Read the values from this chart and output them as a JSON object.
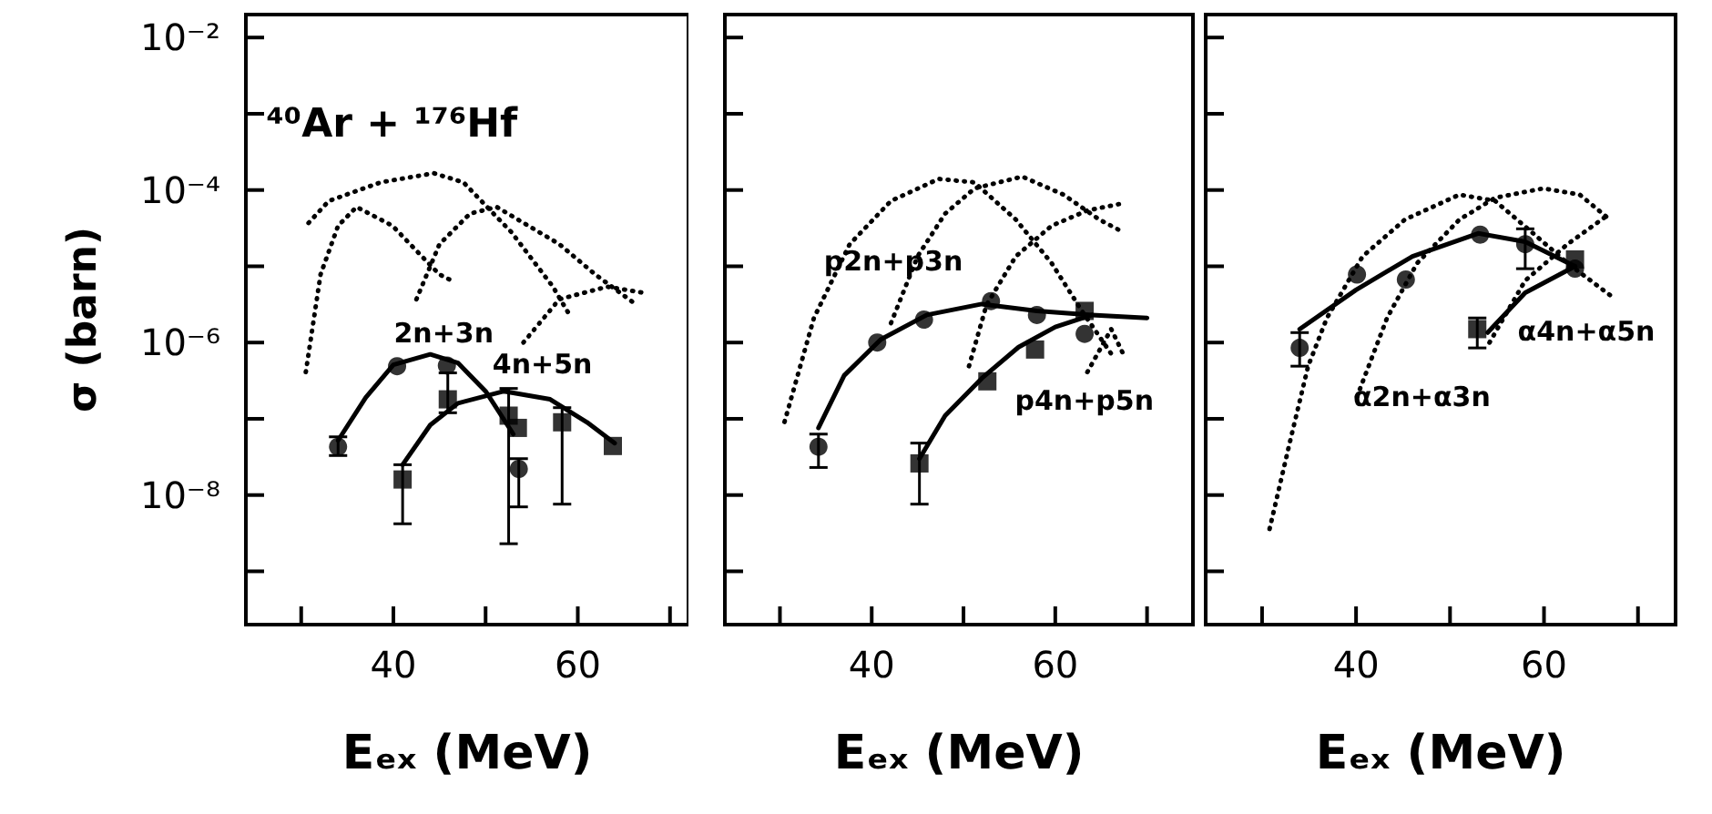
{
  "chart_data": [
    {
      "type": "scatter",
      "xlabel": "Eₑₓ (MeV)",
      "ylabel": "σ (barn)",
      "log": "y",
      "xlim": [
        24,
        72
      ],
      "ylim": [
        2e-10,
        0.02
      ],
      "xticks": [
        {
          "value": 30,
          "label": null
        },
        {
          "value": 40,
          "label": "40"
        },
        {
          "value": 50,
          "label": null
        },
        {
          "value": 60,
          "label": "60"
        },
        {
          "value": 70,
          "label": null
        }
      ],
      "yticks": [
        {
          "value": 1e-09,
          "label": null
        },
        {
          "value": 1e-08,
          "label": "10⁻⁸"
        },
        {
          "value": 1e-07,
          "label": null
        },
        {
          "value": 1e-06,
          "label": "10⁻⁶"
        },
        {
          "value": 1e-05,
          "label": null
        },
        {
          "value": 0.0001,
          "label": "10⁻⁴"
        },
        {
          "value": 0.001,
          "label": null
        },
        {
          "value": 0.01,
          "label": "10⁻²"
        }
      ],
      "annotations": [
        "⁴⁰Ar + ¹⁷⁶Hf",
        "2n+3n",
        "4n+5n"
      ],
      "series": [
        {
          "marker": "circle",
          "color": "#000000",
          "x": [
            34.0,
            40.4,
            45.8,
            53.6
          ],
          "values": [
            4.3e-08,
            4.9e-07,
            5e-07,
            2.2e-08
          ],
          "errors": [
            [
              3.3e-08,
              5.8e-08
            ],
            null,
            null,
            [
              7e-09,
              3e-08
            ]
          ]
        },
        {
          "marker": "square",
          "color": "#000000",
          "x": [
            41.0,
            45.9,
            52.5,
            53.5,
            58.3,
            63.8
          ],
          "values": [
            1.6e-08,
            1.8e-07,
            1.1e-07,
            7.6e-08,
            9e-08,
            4.4e-08
          ],
          "errors": [
            [
              4.2e-09,
              2.5e-08
            ],
            [
              1.2e-07,
              4e-07
            ],
            [
              2.3e-09,
              2.5e-07
            ],
            null,
            [
              7.6e-09,
              1.4e-07
            ],
            null
          ]
        },
        {
          "type": "line",
          "marker": "none",
          "line_style": "solid",
          "color": "#000000",
          "x": [
            34,
            37,
            40,
            44,
            47,
            50,
            53
          ],
          "values": [
            5.2e-08,
            1.9e-07,
            5.1e-07,
            7e-07,
            5.4e-07,
            2.3e-07,
            6.3e-08
          ]
        },
        {
          "type": "line",
          "marker": "none",
          "line_style": "solid",
          "color": "#000000",
          "x": [
            41,
            44,
            47,
            52,
            57,
            61,
            64
          ],
          "values": [
            2.5e-08,
            8.3e-08,
            1.6e-07,
            2.3e-07,
            1.8e-07,
            9e-08,
            4.8e-08
          ]
        },
        {
          "type": "line",
          "marker": "none",
          "line_style": "dotted",
          "color": "#000000",
          "x": [
            30.5,
            32.1,
            34.0,
            36.0,
            39.9,
            42.5,
            45.0,
            46.3
          ],
          "values": [
            4.1e-07,
            7.8e-06,
            3.4e-05,
            6e-05,
            3.4e-05,
            1.6e-05,
            7.8e-06,
            6.5e-06
          ]
        },
        {
          "type": "line",
          "marker": "none",
          "line_style": "dotted",
          "color": "#000000",
          "x": [
            30.8,
            33.0,
            38.6,
            44.4,
            47.6,
            52.8,
            57.3,
            59.3
          ],
          "values": [
            3.7e-05,
            7.2e-05,
            0.000126,
            0.000166,
            0.000126,
            2.8e-05,
            5.4e-06,
            2.1e-06
          ]
        },
        {
          "type": "line",
          "marker": "none",
          "line_style": "dotted",
          "color": "#000000",
          "x": [
            42.5,
            45.0,
            48.3,
            51.2,
            58.0,
            61.9,
            66.4
          ],
          "values": [
            3.7e-06,
            1.95e-05,
            4.9e-05,
            6e-05,
            1.95e-05,
            7.8e-06,
            3.1e-06
          ]
        },
        {
          "type": "line",
          "marker": "none",
          "line_style": "dotted",
          "color": "#000000",
          "x": [
            54.1,
            58.0,
            63.2,
            67.1
          ],
          "values": [
            1e-06,
            3.7e-06,
            5.4e-06,
            4.5e-06
          ]
        }
      ]
    },
    {
      "type": "scatter",
      "xlabel": "Eₑₓ (MeV)",
      "log": "y",
      "xlim": [
        24,
        75
      ],
      "ylim": [
        2e-10,
        0.02
      ],
      "tick_labels": "x",
      "xticks": [
        {
          "value": 30,
          "label": null
        },
        {
          "value": 40,
          "label": "40"
        },
        {
          "value": 50,
          "label": null
        },
        {
          "value": 60,
          "label": "60"
        },
        {
          "value": 70,
          "label": null
        }
      ],
      "yticks": [
        {
          "value": 1e-09,
          "label": null
        },
        {
          "value": 1e-08,
          "label": null
        },
        {
          "value": 1e-07,
          "label": null
        },
        {
          "value": 1e-06,
          "label": null
        },
        {
          "value": 1e-05,
          "label": null
        },
        {
          "value": 0.0001,
          "label": null
        },
        {
          "value": 0.001,
          "label": null
        },
        {
          "value": 0.01,
          "label": null
        }
      ],
      "annotations": [
        "p2n+p3n",
        "p4n+p5n"
      ],
      "series": [
        {
          "marker": "circle",
          "color": "#000000",
          "x": [
            34.2,
            40.6,
            45.7,
            53.0,
            58.0,
            63.2
          ],
          "values": [
            4.3e-08,
            1e-06,
            2e-06,
            3.5e-06,
            2.3e-06,
            1.3e-06
          ],
          "errors": [
            [
              2.3e-08,
              6.3e-08
            ],
            null,
            null,
            null,
            null,
            null
          ]
        },
        {
          "marker": "square",
          "color": "#000000",
          "x": [
            45.2,
            52.6,
            57.8,
            63.2
          ],
          "values": [
            2.6e-08,
            3.1e-07,
            8.1e-07,
            2.6e-06
          ],
          "errors": [
            [
              7.6e-09,
              4.8e-08
            ],
            null,
            null,
            null
          ]
        },
        {
          "type": "line",
          "marker": "none",
          "line_style": "solid",
          "color": "#000000",
          "x": [
            34.2,
            37,
            41,
            46,
            52,
            58,
            64,
            70
          ],
          "values": [
            7.6e-08,
            3.7e-07,
            1.1e-06,
            2.3e-06,
            3.2e-06,
            2.6e-06,
            2.3e-06,
            2.1e-06
          ]
        },
        {
          "type": "line",
          "marker": "none",
          "line_style": "solid",
          "color": "#000000",
          "x": [
            45.2,
            48,
            52,
            56,
            60,
            64
          ],
          "values": [
            3e-08,
            1.1e-07,
            3.4e-07,
            8.7e-07,
            1.6e-06,
            2.3e-06
          ]
        },
        {
          "type": "line",
          "marker": "none",
          "line_style": "dotted",
          "color": "#000000",
          "x": [
            30.5,
            33.7,
            37.6,
            42.1,
            47.3,
            51.2,
            55.7,
            59.6,
            62.9,
            66.1
          ],
          "values": [
            9.1e-08,
            2.1e-06,
            1.95e-05,
            7.2e-05,
            0.00014,
            0.000126,
            4.1e-05,
            1.1e-05,
            2.6e-06,
            7.1e-07
          ]
        },
        {
          "type": "line",
          "marker": "none",
          "line_style": "dotted",
          "color": "#000000",
          "x": [
            42.1,
            45.0,
            48.0,
            51.2,
            56.4,
            60.9,
            64.8,
            67.4
          ],
          "values": [
            1.8e-06,
            1.35e-05,
            4.9e-05,
            0.000105,
            0.00015,
            8.7e-05,
            4.1e-05,
            2.8e-05
          ]
        },
        {
          "type": "line",
          "marker": "none",
          "line_style": "dotted",
          "color": "#000000",
          "x": [
            50.6,
            52.5,
            55.7,
            59.6,
            63.5,
            67.1
          ],
          "values": [
            4.9e-07,
            3.1e-06,
            1.35e-05,
            3.4e-05,
            5.4e-05,
            6.6e-05
          ]
        },
        {
          "type": "line",
          "marker": "none",
          "line_style": "dotted",
          "color": "#000000",
          "x": [
            63.5,
            66.1,
            67.4
          ],
          "values": [
            4.1e-07,
            1.5e-06,
            7.1e-07
          ]
        }
      ]
    },
    {
      "type": "scatter",
      "xlabel": "Eₑₓ (MeV)",
      "log": "y",
      "xlim": [
        24,
        74
      ],
      "ylim": [
        2e-10,
        0.02
      ],
      "tick_labels": "x",
      "xticks": [
        {
          "value": 30,
          "label": null
        },
        {
          "value": 40,
          "label": "40"
        },
        {
          "value": 50,
          "label": null
        },
        {
          "value": 60,
          "label": "60"
        },
        {
          "value": 70,
          "label": null
        }
      ],
      "yticks": [
        {
          "value": 1e-09,
          "label": null
        },
        {
          "value": 1e-08,
          "label": null
        },
        {
          "value": 1e-07,
          "label": null
        },
        {
          "value": 1e-06,
          "label": null
        },
        {
          "value": 1e-05,
          "label": null
        },
        {
          "value": 0.0001,
          "label": null
        },
        {
          "value": 0.001,
          "label": null
        },
        {
          "value": 0.01,
          "label": null
        }
      ],
      "annotations": [
        "α2n+α3n",
        "α4n+α5n"
      ],
      "series": [
        {
          "marker": "circle",
          "color": "#000000",
          "x": [
            34.0,
            40.1,
            45.3,
            53.2,
            58.0,
            63.3
          ],
          "values": [
            8.5e-07,
            7.8e-06,
            6.7e-06,
            2.6e-05,
            1.95e-05,
            9.3e-06
          ],
          "errors": [
            [
              4.9e-07,
              1.35e-06
            ],
            null,
            null,
            null,
            [
              9.3e-06,
              3.1e-05
            ],
            null
          ]
        },
        {
          "marker": "square",
          "color": "#000000",
          "x": [
            52.9,
            63.3
          ],
          "values": [
            1.5e-06,
            1.23e-05
          ],
          "errors": [
            [
              8.5e-07,
              2.1e-06
            ],
            null
          ]
        },
        {
          "type": "line",
          "marker": "none",
          "line_style": "solid",
          "color": "#000000",
          "x": [
            34,
            40,
            46,
            53,
            58,
            63.3
          ],
          "values": [
            1.5e-06,
            4.9e-06,
            1.35e-05,
            2.7e-05,
            2.1e-05,
            1e-05
          ]
        },
        {
          "type": "line",
          "marker": "none",
          "line_style": "solid",
          "color": "#000000",
          "x": [
            54,
            58,
            63.3
          ],
          "values": [
            1.35e-06,
            4.5e-06,
            1e-05
          ]
        },
        {
          "type": "line",
          "marker": "none",
          "line_style": "dotted",
          "color": "#000000",
          "x": [
            30.8,
            33.0,
            34.9,
            36.9,
            40.7,
            45.2,
            51.0,
            54.8,
            58.7,
            62.5,
            67.6
          ],
          "values": [
            3.6e-09,
            5.2e-08,
            4.9e-07,
            2.1e-06,
            1.35e-05,
            4.1e-05,
            8.7e-05,
            7.2e-05,
            2.8e-05,
            1.1e-05,
            3.7e-06
          ]
        },
        {
          "type": "line",
          "marker": "none",
          "line_style": "dotted",
          "color": "#000000",
          "x": [
            40.1,
            43.3,
            46.5,
            51.0,
            54.8,
            59.9,
            63.8,
            67.0
          ],
          "values": [
            1.95e-07,
            2.1e-06,
            1.1e-05,
            4.1e-05,
            7.9e-05,
            0.000105,
            8.7e-05,
            4.1e-05
          ]
        },
        {
          "type": "line",
          "marker": "none",
          "line_style": "dotted",
          "color": "#000000",
          "x": [
            54.2,
            58.0,
            62.5,
            67.0
          ],
          "values": [
            1e-06,
            6.5e-06,
            1.95e-05,
            4.9e-05
          ]
        }
      ]
    }
  ]
}
